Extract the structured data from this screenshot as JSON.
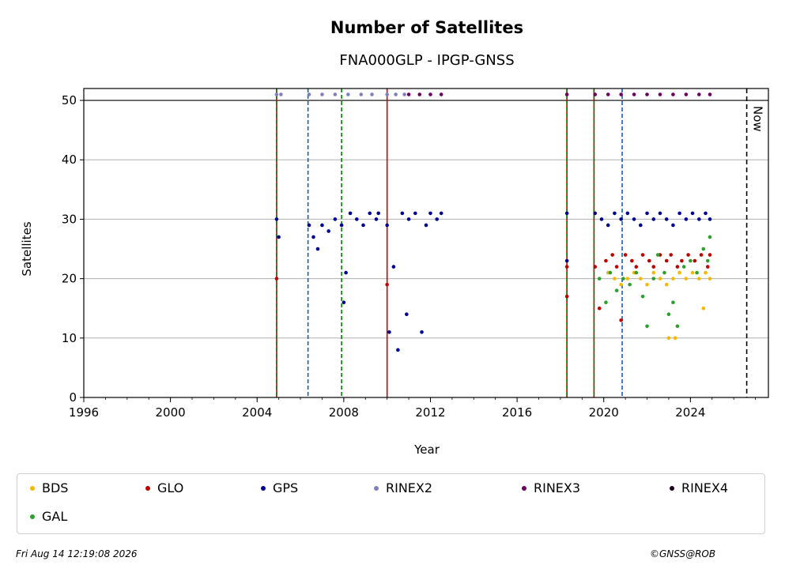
{
  "chart_data": {
    "type": "scatter",
    "title": "Number of Satellites",
    "subtitle": "FNA000GLP - IPGP-GNSS",
    "xlabel": "Year",
    "ylabel": "Satellites",
    "xlim": [
      1996,
      2027.6
    ],
    "ylim": [
      0,
      52
    ],
    "x_ticks": [
      "1996",
      "2000",
      "2004",
      "2008",
      "2012",
      "2016",
      "2020",
      "2024"
    ],
    "y_ticks": [
      "0",
      "10",
      "20",
      "30",
      "40",
      "50"
    ],
    "grid": "horizontal",
    "now_label": "Now",
    "now_year": 2026.6,
    "event_lines": [
      {
        "year": 2004.9,
        "color": "#d00000",
        "style": "solid"
      },
      {
        "year": 2004.9,
        "color": "#008000",
        "style": "dashed"
      },
      {
        "year": 2006.35,
        "color": "#1060b0",
        "style": "dashed"
      },
      {
        "year": 2007.9,
        "color": "#008000",
        "style": "dashed"
      },
      {
        "year": 2010.0,
        "color": "#d00000",
        "style": "solid"
      },
      {
        "year": 2018.3,
        "color": "#d00000",
        "style": "solid"
      },
      {
        "year": 2018.3,
        "color": "#008000",
        "style": "dashed"
      },
      {
        "year": 2019.55,
        "color": "#d00000",
        "style": "solid"
      },
      {
        "year": 2019.55,
        "color": "#008000",
        "style": "dashed"
      },
      {
        "year": 2020.85,
        "color": "#1060b0",
        "style": "dashed"
      }
    ],
    "series": [
      {
        "name": "BDS",
        "color": "#f5b800",
        "points": [
          [
            2020.2,
            21
          ],
          [
            2020.5,
            20
          ],
          [
            2020.8,
            19
          ],
          [
            2021.1,
            20
          ],
          [
            2021.4,
            21
          ],
          [
            2021.7,
            20
          ],
          [
            2022.0,
            19
          ],
          [
            2022.3,
            21
          ],
          [
            2022.6,
            20
          ],
          [
            2022.9,
            19
          ],
          [
            2023.0,
            10
          ],
          [
            2023.2,
            20
          ],
          [
            2023.3,
            10
          ],
          [
            2023.5,
            21
          ],
          [
            2023.8,
            20
          ],
          [
            2024.1,
            21
          ],
          [
            2024.4,
            20
          ],
          [
            2024.7,
            21
          ],
          [
            2024.9,
            20
          ],
          [
            2024.6,
            15
          ]
        ]
      },
      {
        "name": "GLO",
        "color": "#c00000",
        "points": [
          [
            2004.9,
            20
          ],
          [
            2010.0,
            19
          ],
          [
            2018.3,
            17
          ],
          [
            2018.3,
            22
          ],
          [
            2019.6,
            22
          ],
          [
            2019.8,
            15
          ],
          [
            2020.1,
            23
          ],
          [
            2020.4,
            24
          ],
          [
            2020.6,
            22
          ],
          [
            2020.8,
            13
          ],
          [
            2021.0,
            24
          ],
          [
            2021.3,
            23
          ],
          [
            2021.5,
            22
          ],
          [
            2021.8,
            24
          ],
          [
            2022.1,
            23
          ],
          [
            2022.3,
            22
          ],
          [
            2022.6,
            24
          ],
          [
            2022.9,
            23
          ],
          [
            2023.1,
            24
          ],
          [
            2023.4,
            22
          ],
          [
            2023.6,
            23
          ],
          [
            2023.9,
            24
          ],
          [
            2024.2,
            23
          ],
          [
            2024.5,
            24
          ],
          [
            2024.8,
            22
          ],
          [
            2024.9,
            24
          ]
        ]
      },
      {
        "name": "GPS",
        "color": "#000090",
        "points": [
          [
            2004.9,
            30
          ],
          [
            2005.0,
            27
          ],
          [
            2006.4,
            29
          ],
          [
            2006.6,
            27
          ],
          [
            2006.8,
            25
          ],
          [
            2007.0,
            29
          ],
          [
            2007.3,
            28
          ],
          [
            2007.6,
            30
          ],
          [
            2007.9,
            29
          ],
          [
            2008.0,
            16
          ],
          [
            2008.1,
            21
          ],
          [
            2008.3,
            31
          ],
          [
            2008.6,
            30
          ],
          [
            2008.9,
            29
          ],
          [
            2009.2,
            31
          ],
          [
            2009.5,
            30
          ],
          [
            2009.6,
            31
          ],
          [
            2010.0,
            29
          ],
          [
            2010.1,
            11
          ],
          [
            2010.3,
            22
          ],
          [
            2010.5,
            8
          ],
          [
            2010.7,
            31
          ],
          [
            2010.9,
            14
          ],
          [
            2011.0,
            30
          ],
          [
            2011.3,
            31
          ],
          [
            2011.6,
            11
          ],
          [
            2011.8,
            29
          ],
          [
            2012.0,
            31
          ],
          [
            2012.3,
            30
          ],
          [
            2012.5,
            31
          ],
          [
            2018.3,
            31
          ],
          [
            2018.3,
            23
          ],
          [
            2019.6,
            31
          ],
          [
            2019.9,
            30
          ],
          [
            2020.2,
            29
          ],
          [
            2020.5,
            31
          ],
          [
            2020.8,
            30
          ],
          [
            2021.1,
            31
          ],
          [
            2021.4,
            30
          ],
          [
            2021.7,
            29
          ],
          [
            2022.0,
            31
          ],
          [
            2022.3,
            30
          ],
          [
            2022.6,
            31
          ],
          [
            2022.9,
            30
          ],
          [
            2023.2,
            29
          ],
          [
            2023.5,
            31
          ],
          [
            2023.8,
            30
          ],
          [
            2024.1,
            31
          ],
          [
            2024.4,
            30
          ],
          [
            2024.7,
            31
          ],
          [
            2024.9,
            30
          ]
        ]
      },
      {
        "name": "RINEX2",
        "color": "#8080c0",
        "points": [
          [
            2004.9,
            51
          ],
          [
            2005.1,
            51
          ],
          [
            2006.4,
            51
          ],
          [
            2007.0,
            51
          ],
          [
            2007.6,
            51
          ],
          [
            2008.2,
            51
          ],
          [
            2008.8,
            51
          ],
          [
            2009.3,
            51
          ],
          [
            2010.0,
            51
          ],
          [
            2010.4,
            51
          ],
          [
            2010.8,
            51
          ]
        ]
      },
      {
        "name": "RINEX3",
        "color": "#6a0060",
        "points": [
          [
            2011.0,
            51
          ],
          [
            2011.5,
            51
          ],
          [
            2012.0,
            51
          ],
          [
            2012.5,
            51
          ],
          [
            2018.3,
            51
          ],
          [
            2019.6,
            51
          ],
          [
            2020.2,
            51
          ],
          [
            2020.8,
            51
          ],
          [
            2021.4,
            51
          ],
          [
            2022.0,
            51
          ],
          [
            2022.6,
            51
          ],
          [
            2023.2,
            51
          ],
          [
            2023.8,
            51
          ],
          [
            2024.4,
            51
          ],
          [
            2024.9,
            51
          ]
        ]
      },
      {
        "name": "RINEX4",
        "color": "#200020",
        "points": []
      },
      {
        "name": "GAL",
        "color": "#2ca02c",
        "points": [
          [
            2019.8,
            20
          ],
          [
            2020.1,
            16
          ],
          [
            2020.3,
            21
          ],
          [
            2020.6,
            18
          ],
          [
            2020.9,
            20
          ],
          [
            2021.2,
            19
          ],
          [
            2021.5,
            21
          ],
          [
            2021.8,
            17
          ],
          [
            2022.0,
            12
          ],
          [
            2022.3,
            20
          ],
          [
            2022.5,
            24
          ],
          [
            2022.8,
            21
          ],
          [
            2023.0,
            14
          ],
          [
            2023.2,
            16
          ],
          [
            2023.4,
            12
          ],
          [
            2023.7,
            22
          ],
          [
            2024.0,
            23
          ],
          [
            2024.3,
            21
          ],
          [
            2024.6,
            25
          ],
          [
            2024.8,
            23
          ],
          [
            2024.9,
            27
          ]
        ]
      }
    ]
  },
  "legend": {
    "items": [
      {
        "label": "BDS",
        "color": "#f5b800"
      },
      {
        "label": "GLO",
        "color": "#c00000"
      },
      {
        "label": "GPS",
        "color": "#000090"
      },
      {
        "label": "RINEX2",
        "color": "#8080c0"
      },
      {
        "label": "RINEX3",
        "color": "#6a0060"
      },
      {
        "label": "RINEX4",
        "color": "#200020"
      },
      {
        "label": "GAL",
        "color": "#2ca02c"
      }
    ]
  },
  "footer": {
    "timestamp": "Fri Aug 14 12:19:08 2026",
    "credit": "©GNSS@ROB"
  }
}
